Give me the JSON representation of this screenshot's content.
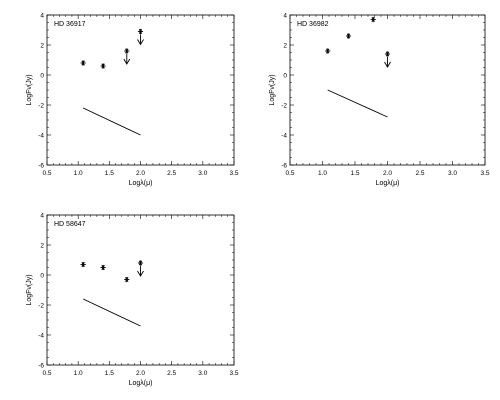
{
  "chart_data": [
    {
      "type": "scatter",
      "title": "HD 36917",
      "xlabel": "Logλ(μ)",
      "ylabel": "LogFν(Jy)",
      "xlim": [
        0.5,
        3.5
      ],
      "ylim": [
        -6,
        4
      ],
      "xticks": [
        "0.5",
        "1.0",
        "1.5",
        "2.0",
        "2.5",
        "3.0",
        "3.5"
      ],
      "yticks": [
        "-6",
        "-4",
        "-2",
        "0",
        "2",
        "4"
      ],
      "grid": false,
      "points": [
        {
          "x": 1.08,
          "y": 0.8,
          "marker": "star"
        },
        {
          "x": 1.4,
          "y": 0.6,
          "marker": "star"
        },
        {
          "x": 1.78,
          "y": 1.6,
          "marker": "star"
        },
        {
          "x": 2.0,
          "y": 2.9,
          "marker": "star"
        }
      ],
      "upper_limits": [
        {
          "x": 1.78,
          "y": 1.6
        },
        {
          "x": 2.0,
          "y": 2.9
        }
      ],
      "line": {
        "x": [
          1.08,
          2.0
        ],
        "y": [
          -2.2,
          -4.0
        ]
      }
    },
    {
      "type": "scatter",
      "title": "HD 36982",
      "xlabel": "Logλ(μ)",
      "ylabel": "LogFν(Jy)",
      "xlim": [
        0.5,
        3.5
      ],
      "ylim": [
        -6,
        4
      ],
      "xticks": [
        "0.5",
        "1.0",
        "1.5",
        "2.0",
        "2.5",
        "3.0",
        "3.5"
      ],
      "yticks": [
        "-6",
        "-4",
        "-2",
        "0",
        "2",
        "4"
      ],
      "grid": false,
      "points": [
        {
          "x": 1.08,
          "y": 1.6,
          "marker": "star"
        },
        {
          "x": 1.4,
          "y": 2.6,
          "marker": "star"
        },
        {
          "x": 1.78,
          "y": 3.7,
          "marker": "star"
        },
        {
          "x": 2.0,
          "y": 1.4,
          "marker": "star"
        }
      ],
      "upper_limits": [
        {
          "x": 2.0,
          "y": 1.4
        }
      ],
      "line": {
        "x": [
          1.08,
          2.0
        ],
        "y": [
          -1.0,
          -2.8
        ]
      }
    },
    {
      "type": "scatter",
      "title": "HD 58647",
      "xlabel": "Logλ(μ)",
      "ylabel": "LogFν(Jy)",
      "xlim": [
        0.5,
        3.5
      ],
      "ylim": [
        -6,
        4
      ],
      "xticks": [
        "0.5",
        "1.0",
        "1.5",
        "2.0",
        "2.5",
        "3.0",
        "3.5"
      ],
      "yticks": [
        "-6",
        "-4",
        "-2",
        "0",
        "2",
        "4"
      ],
      "grid": false,
      "points": [
        {
          "x": 1.08,
          "y": 0.7,
          "marker": "star"
        },
        {
          "x": 1.4,
          "y": 0.5,
          "marker": "star"
        },
        {
          "x": 1.78,
          "y": -0.3,
          "marker": "star"
        },
        {
          "x": 2.0,
          "y": 0.8,
          "marker": "star"
        }
      ],
      "upper_limits": [
        {
          "x": 2.0,
          "y": 0.8
        }
      ],
      "line": {
        "x": [
          1.08,
          2.0
        ],
        "y": [
          -1.6,
          -3.4
        ]
      }
    }
  ]
}
